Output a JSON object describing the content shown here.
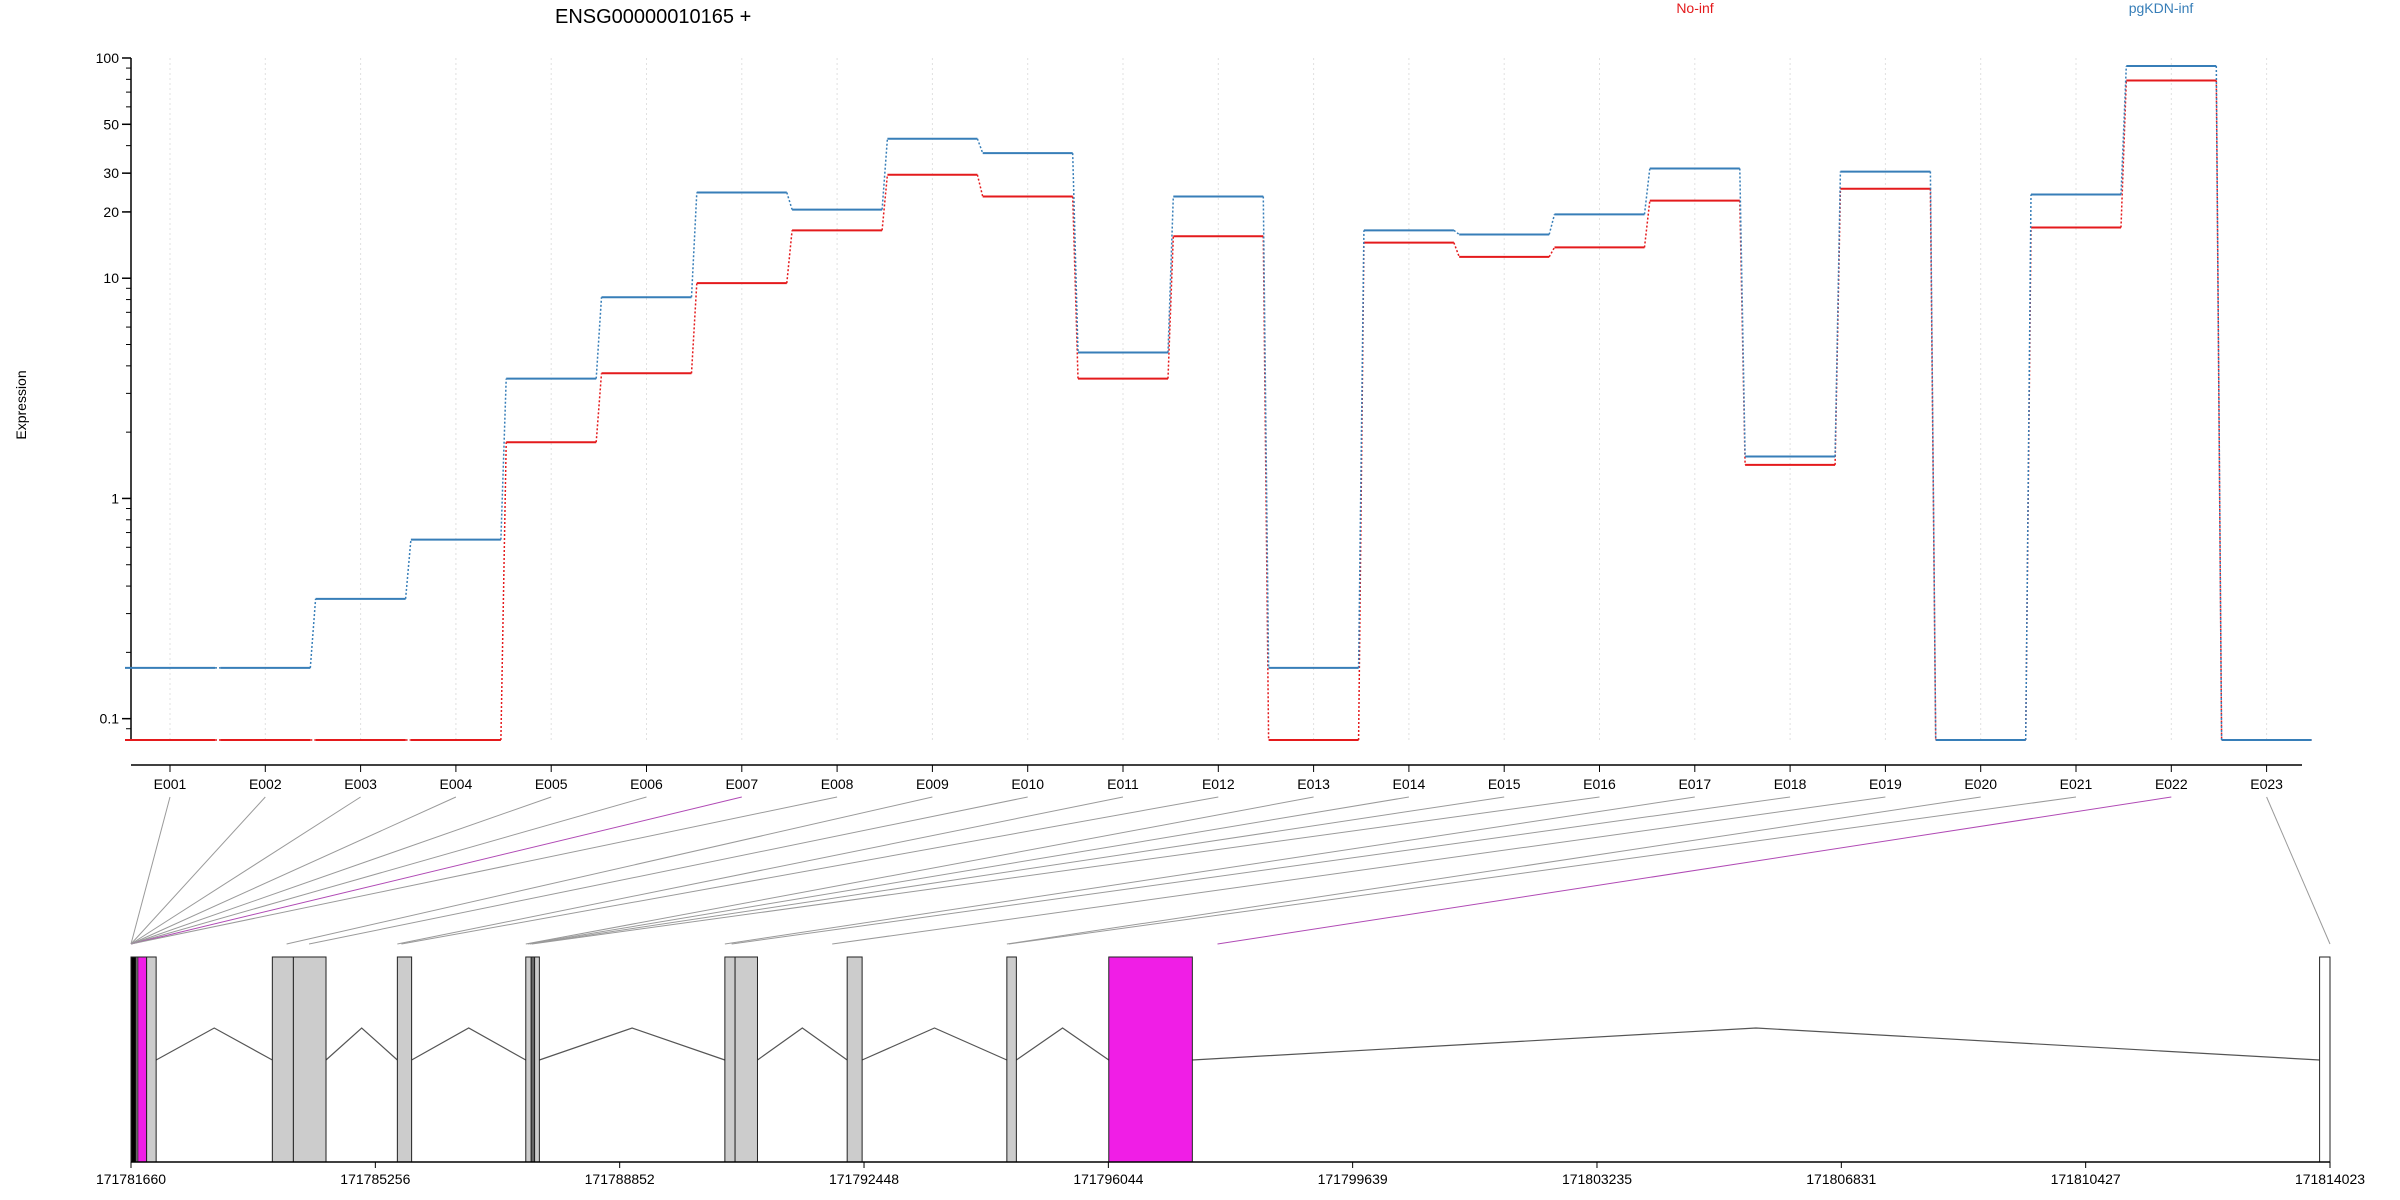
{
  "chart_data": {
    "type": "line",
    "title": "ENSG00000010165 +",
    "ylabel": "Expression",
    "yscale": "log",
    "ylim": [
      0.08,
      100
    ],
    "yticks": [
      0.1,
      1,
      10,
      20,
      30,
      50,
      100
    ],
    "ytick_labels": [
      "0.1",
      "1",
      "10",
      "20",
      "30",
      "50",
      "100"
    ],
    "legend_placement": "top",
    "grid": "vertical dotted",
    "categories": [
      "E001",
      "E002",
      "E003",
      "E004",
      "E005",
      "E006",
      "E007",
      "E008",
      "E009",
      "E010",
      "E011",
      "E012",
      "E013",
      "E014",
      "E015",
      "E016",
      "E017",
      "E018",
      "E019",
      "E020",
      "E021",
      "E022",
      "E023"
    ],
    "series": [
      {
        "name": "No-inf",
        "color": "#e41a1c",
        "values": [
          0.08,
          0.08,
          0.08,
          0.08,
          1.8,
          3.7,
          9.5,
          16.5,
          29.5,
          23.5,
          3.5,
          15.5,
          0.08,
          14.5,
          12.5,
          13.8,
          22.5,
          1.42,
          25.5,
          0.08,
          17.0,
          79.0,
          0.08
        ]
      },
      {
        "name": "pgKDN-inf",
        "color": "#377eb8",
        "values": [
          0.17,
          0.17,
          0.35,
          0.65,
          3.5,
          8.2,
          24.5,
          20.5,
          43.0,
          37.0,
          4.6,
          23.5,
          0.17,
          16.5,
          15.8,
          19.5,
          31.5,
          1.55,
          30.5,
          0.08,
          24.0,
          92.0,
          0.08
        ]
      }
    ],
    "gene_model": {
      "genomic_ticks": [
        171781660,
        171785256,
        171788852,
        171792448,
        171796044,
        171799639,
        171803235,
        171806831,
        171810427,
        171814023
      ],
      "genomic_range": [
        171781660,
        171814023
      ],
      "exons": [
        {
          "start": 171781660,
          "end": 171781735,
          "fill": "#000000"
        },
        {
          "start": 171781735,
          "end": 171781760,
          "fill": "#cccccc"
        },
        {
          "start": 171781760,
          "end": 171781890,
          "fill": "#f01ee6"
        },
        {
          "start": 171781890,
          "end": 171782030,
          "fill": "#cccccc"
        },
        {
          "start": 171783740,
          "end": 171784050,
          "fill": "#cccccc"
        },
        {
          "start": 171784050,
          "end": 171784530,
          "fill": "#cccccc"
        },
        {
          "start": 171785580,
          "end": 171785790,
          "fill": "#cccccc"
        },
        {
          "start": 171787470,
          "end": 171787550,
          "fill": "#cccccc"
        },
        {
          "start": 171787550,
          "end": 171787600,
          "fill": "#666666"
        },
        {
          "start": 171787600,
          "end": 171787670,
          "fill": "#cccccc"
        },
        {
          "start": 171790400,
          "end": 171790550,
          "fill": "#cccccc"
        },
        {
          "start": 171790550,
          "end": 171790880,
          "fill": "#cccccc"
        },
        {
          "start": 171792200,
          "end": 171792420,
          "fill": "#cccccc"
        },
        {
          "start": 171794550,
          "end": 171794690,
          "fill": "#cccccc"
        },
        {
          "start": 171796050,
          "end": 171797280,
          "fill": "#f01ee6"
        },
        {
          "start": 171813870,
          "end": 171814023,
          "fill": "#ffffff"
        }
      ],
      "introns": [
        [
          171782030,
          171783740
        ],
        [
          171784530,
          171785580
        ],
        [
          171785790,
          171787470
        ],
        [
          171787670,
          171790400
        ],
        [
          171790880,
          171792200
        ],
        [
          171792420,
          171794550
        ],
        [
          171794690,
          171796050
        ],
        [
          171797280,
          171813870
        ]
      ],
      "exon_link_targets": [
        171781660,
        171781660,
        171781660,
        171781660,
        171781660,
        171781660,
        171781660,
        171781660,
        171783950,
        171784280,
        171785580,
        171785640,
        171787470,
        171787500,
        171787530,
        171787560,
        171790400,
        171790500,
        171791980,
        171794550,
        171794580,
        171797650,
        171814023
      ],
      "highlighted_exons": [
        "E007",
        "E022"
      ]
    }
  }
}
